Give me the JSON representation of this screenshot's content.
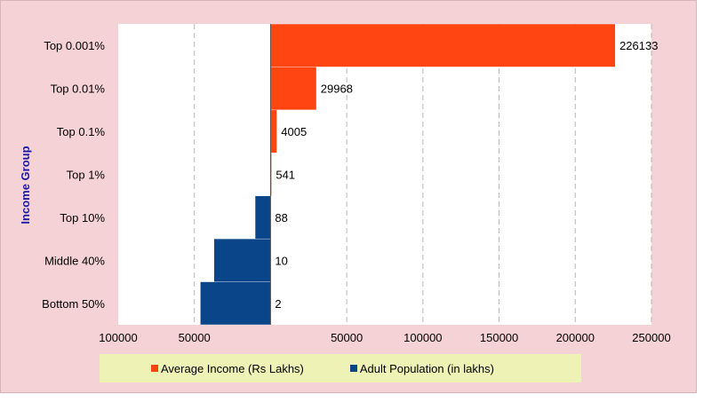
{
  "chart_data": {
    "type": "bar",
    "orientation": "horizontal",
    "ylabel": "Income Group",
    "categories": [
      "Top 0.001%",
      "Top 0.01%",
      "Top 0.1%",
      "Top 1%",
      "Top 10%",
      "Middle 40%",
      "Bottom 50%"
    ],
    "series": [
      {
        "name": "Average Income (Rs Lakhs)",
        "color": "#ff4512",
        "values": [
          226133,
          29968,
          4005,
          541,
          null,
          null,
          null
        ]
      },
      {
        "name": "Adult Population (in lakhs)",
        "color": "#0b4589",
        "values": [
          null,
          null,
          null,
          null,
          -10000,
          -37000,
          -46000
        ]
      }
    ],
    "data_labels": [
      "226133",
      "29968",
      "4005",
      "541",
      "88",
      "10",
      "2"
    ],
    "xlim": [
      -100000,
      250000
    ],
    "xticks": [
      -100000,
      -50000,
      50000,
      100000,
      150000,
      200000,
      250000
    ],
    "xtick_labels": [
      "100000",
      "50000",
      "50000",
      "100000",
      "150000",
      "200000",
      "250000"
    ],
    "grid": "vertical dashed",
    "legend_position": "bottom"
  }
}
